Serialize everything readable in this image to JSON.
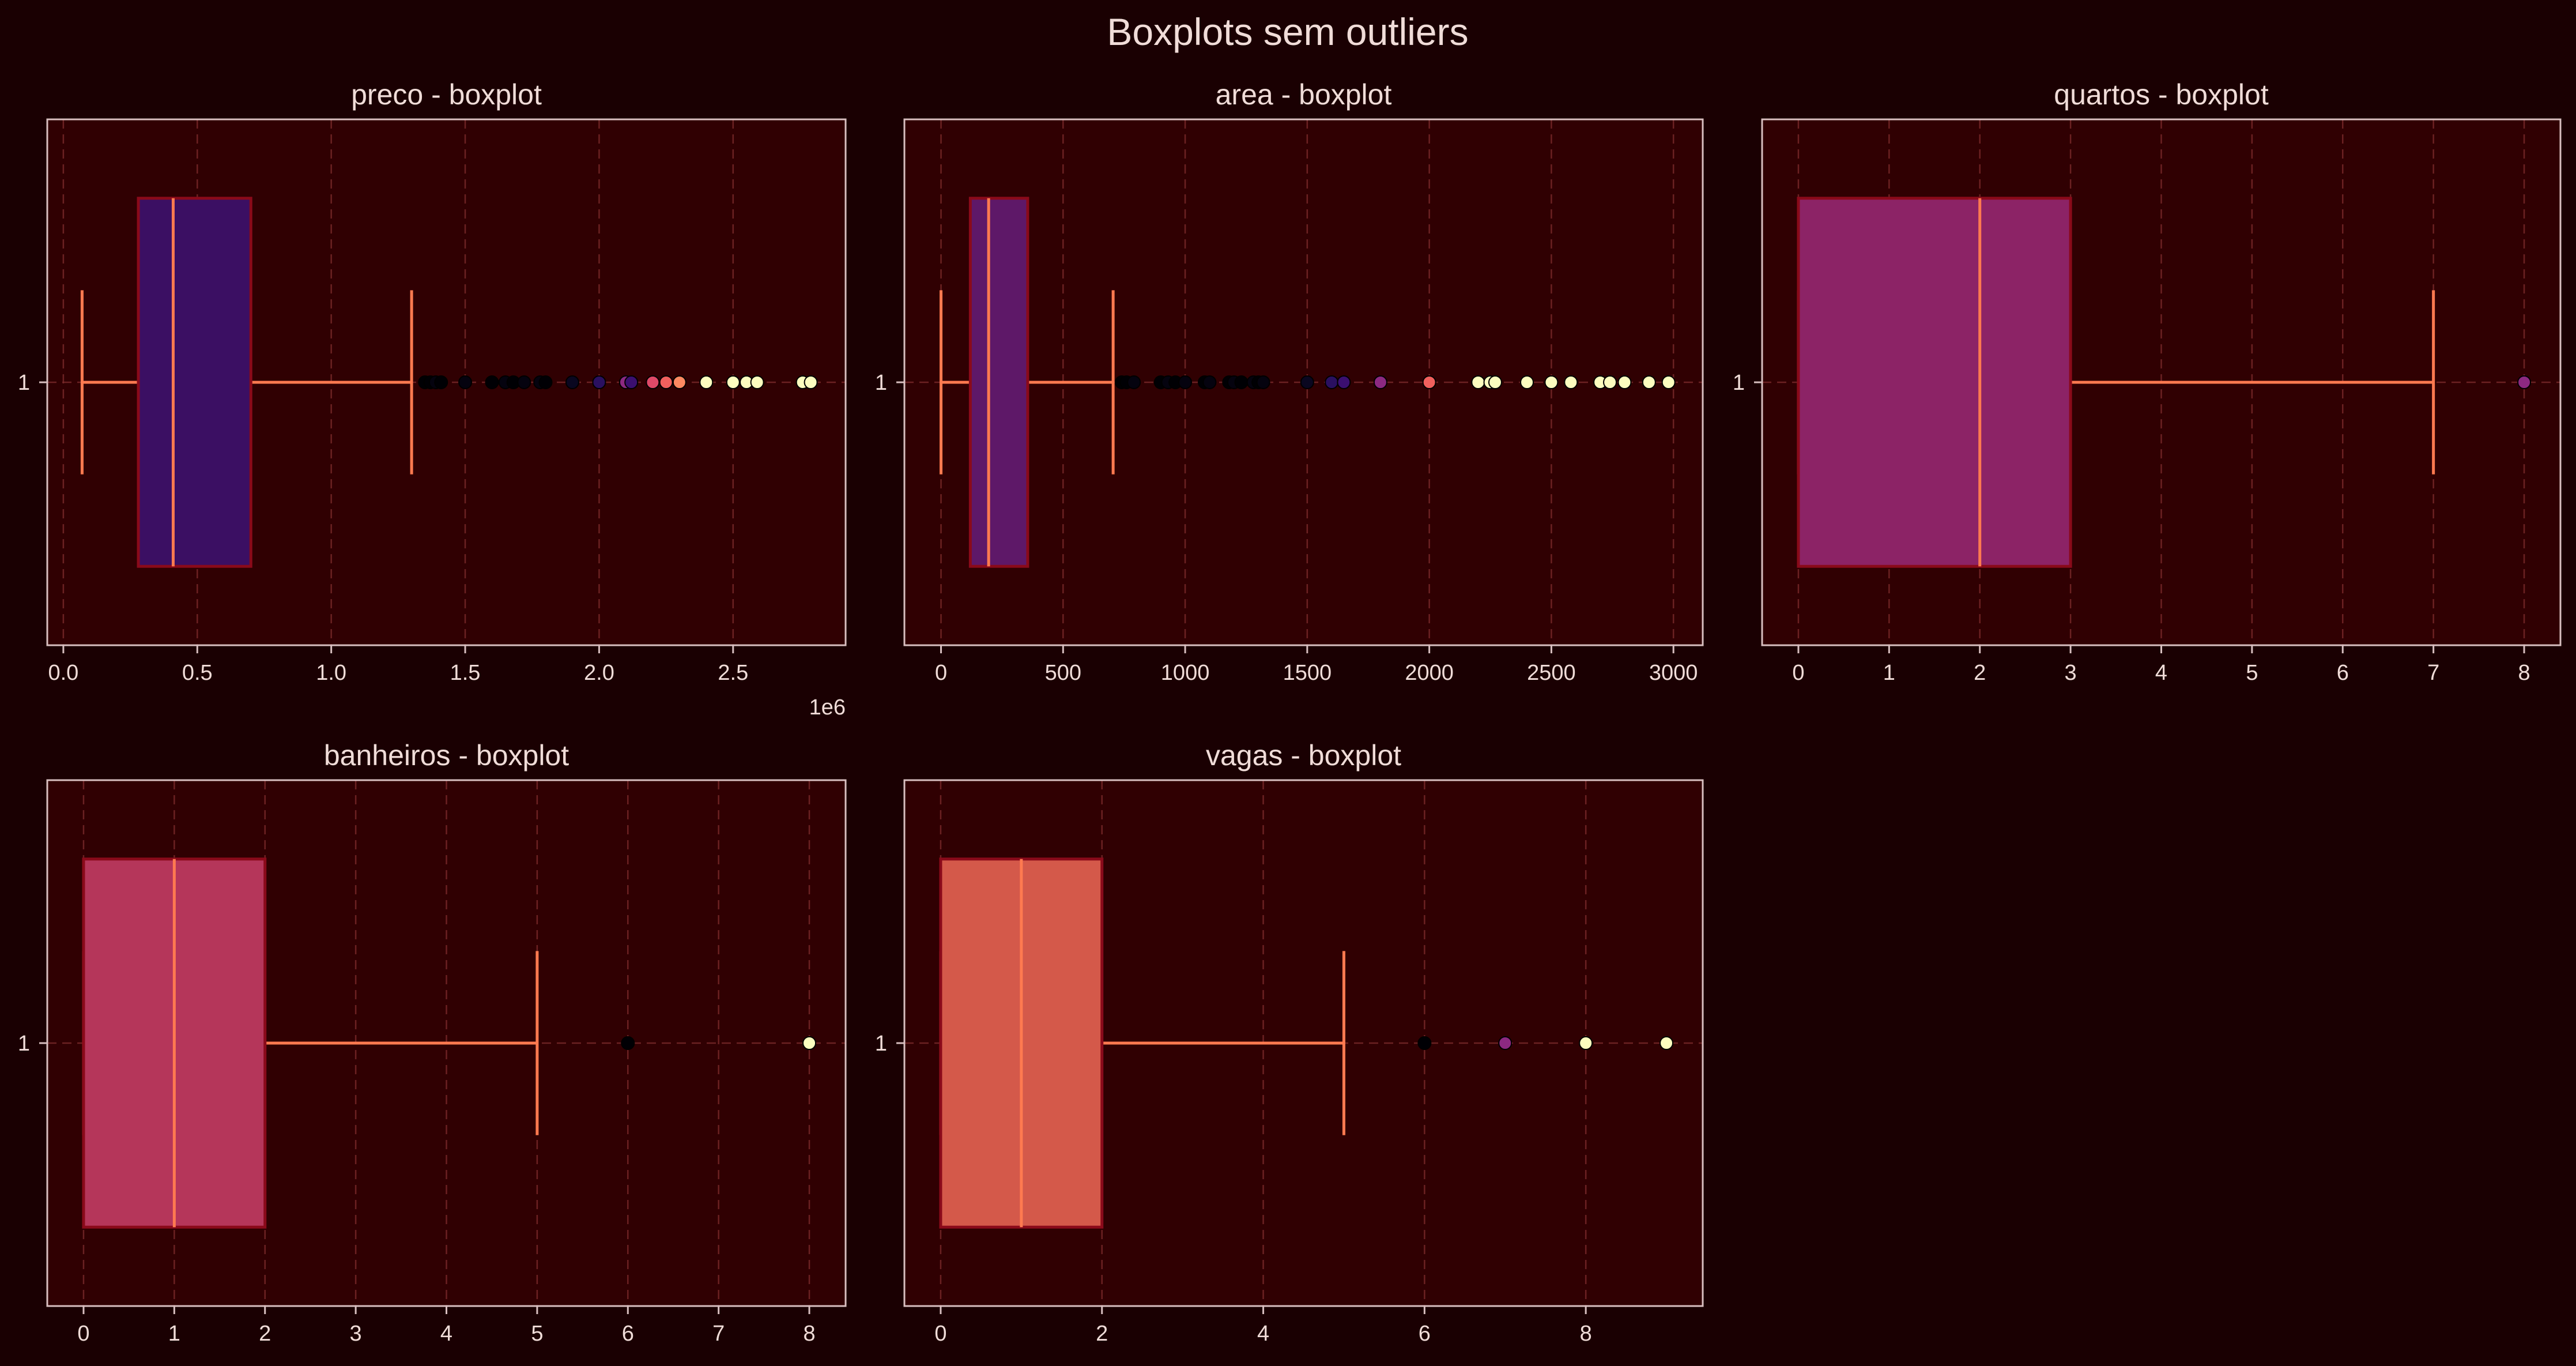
{
  "figure": {
    "title": "Boxplots sem outliers",
    "background": "#1a0002",
    "panel_background": "#300002",
    "axis_color": "#d8bfc0",
    "text_color": "#f0dcd8",
    "grid_color": "#7a2a2a",
    "whisker_color": "#ff7a50",
    "box_edge_color": "#8a0a1a"
  },
  "chart_data": [
    {
      "type": "boxplot",
      "title": "preco - boxplot",
      "orientation": "horizontal",
      "ytick_labels": [
        "1"
      ],
      "xticks": [
        0,
        0.5,
        1.0,
        1.5,
        2.0,
        2.5
      ],
      "xtick_labels": [
        "0.0",
        "0.5",
        "1.0",
        "1.5",
        "2.0",
        "2.5"
      ],
      "offset_text": "1e6",
      "xlim": [
        -0.06,
        2.92
      ],
      "grid": true,
      "box_color": "#3b0f63",
      "stats": {
        "whislo": 0.07,
        "q1": 0.28,
        "med": 0.41,
        "q3": 0.7,
        "whishi": 1.3
      },
      "fliers": [
        1.35,
        1.37,
        1.39,
        1.41,
        1.5,
        1.6,
        1.65,
        1.68,
        1.72,
        1.78,
        1.8,
        1.9,
        2.0,
        2.1,
        2.12,
        2.2,
        2.25,
        2.3,
        2.4,
        2.5,
        2.55,
        2.59,
        2.76,
        2.79
      ],
      "flier_colors": [
        "#000004",
        "#000004",
        "#05030f",
        "#000004",
        "#05030f",
        "#000004",
        "#05030f",
        "#000004",
        "#05030f",
        "#05030f",
        "#000004",
        "#0a0720",
        "#2a1060",
        "#8c2981",
        "#3b0f70",
        "#de4968",
        "#f1605d",
        "#fc8961",
        "#fcfdbf",
        "#fcfdbf",
        "#fcfdbf",
        "#fcfdbf",
        "#fcfdbf",
        "#fcfdbf"
      ]
    },
    {
      "type": "boxplot",
      "title": "area - boxplot",
      "orientation": "horizontal",
      "ytick_labels": [
        "1"
      ],
      "xticks": [
        0,
        500,
        1000,
        1500,
        2000,
        2500,
        3000
      ],
      "xtick_labels": [
        "0",
        "500",
        "1000",
        "1500",
        "2000",
        "2500",
        "3000"
      ],
      "xlim": [
        -150,
        3120
      ],
      "grid": true,
      "box_color": "#5e1868",
      "stats": {
        "whislo": 0,
        "q1": 120,
        "med": 195,
        "q3": 355,
        "whishi": 705
      },
      "fliers": [
        740,
        760,
        790,
        900,
        930,
        960,
        1000,
        1080,
        1100,
        1180,
        1200,
        1230,
        1280,
        1300,
        1320,
        1500,
        1600,
        1650,
        1800,
        2000,
        2200,
        2250,
        2270,
        2400,
        2500,
        2580,
        2700,
        2740,
        2800,
        2900,
        2980
      ],
      "flier_colors": [
        "#000004",
        "#000004",
        "#05030f",
        "#000004",
        "#05030f",
        "#000004",
        "#05030f",
        "#000004",
        "#05030f",
        "#000004",
        "#05030f",
        "#000004",
        "#05030f",
        "#000004",
        "#05030f",
        "#0a0720",
        "#2a1060",
        "#3b0f70",
        "#8c2981",
        "#f1605d",
        "#fcfdbf",
        "#fcfdbf",
        "#fcfdbf",
        "#fcfdbf",
        "#fcfdbf",
        "#fcfdbf",
        "#fcfdbf",
        "#fcfdbf",
        "#fcfdbf",
        "#fcfdbf",
        "#fcfdbf"
      ]
    },
    {
      "type": "boxplot",
      "title": "quartos - boxplot",
      "orientation": "horizontal",
      "ytick_labels": [
        "1"
      ],
      "xticks": [
        0,
        1,
        2,
        3,
        4,
        5,
        6,
        7,
        8
      ],
      "xtick_labels": [
        "0",
        "1",
        "2",
        "3",
        "4",
        "5",
        "6",
        "7",
        "8"
      ],
      "xlim": [
        -0.4,
        8.4
      ],
      "grid": true,
      "box_color": "#8c2366",
      "stats": {
        "whislo": 0,
        "q1": 0,
        "med": 2,
        "q3": 3,
        "whishi": 7
      },
      "fliers": [
        8
      ],
      "flier_colors": [
        "#8c2981"
      ]
    },
    {
      "type": "boxplot",
      "title": "banheiros - boxplot",
      "orientation": "horizontal",
      "ytick_labels": [
        "1"
      ],
      "xticks": [
        0,
        1,
        2,
        3,
        4,
        5,
        6,
        7,
        8
      ],
      "xtick_labels": [
        "0",
        "1",
        "2",
        "3",
        "4",
        "5",
        "6",
        "7",
        "8"
      ],
      "xlim": [
        -0.4,
        8.4
      ],
      "grid": true,
      "box_color": "#b5365a",
      "stats": {
        "whislo": 0,
        "q1": 0,
        "med": 1,
        "q3": 2,
        "whishi": 5
      },
      "fliers": [
        6,
        8
      ],
      "flier_colors": [
        "#000004",
        "#fcfdbf"
      ]
    },
    {
      "type": "boxplot",
      "title": "vagas - boxplot",
      "orientation": "horizontal",
      "ytick_labels": [
        "1"
      ],
      "xticks": [
        0,
        2,
        4,
        6,
        8
      ],
      "xtick_labels": [
        "0",
        "2",
        "4",
        "6",
        "8"
      ],
      "xlim": [
        -0.45,
        9.45
      ],
      "grid": true,
      "box_color": "#d4594a",
      "stats": {
        "whislo": 0,
        "q1": 0,
        "med": 1,
        "q3": 2,
        "whishi": 5
      },
      "fliers": [
        6,
        7,
        8,
        9
      ],
      "flier_colors": [
        "#000004",
        "#8c2981",
        "#fcfdbf",
        "#fcfdbf"
      ]
    }
  ]
}
